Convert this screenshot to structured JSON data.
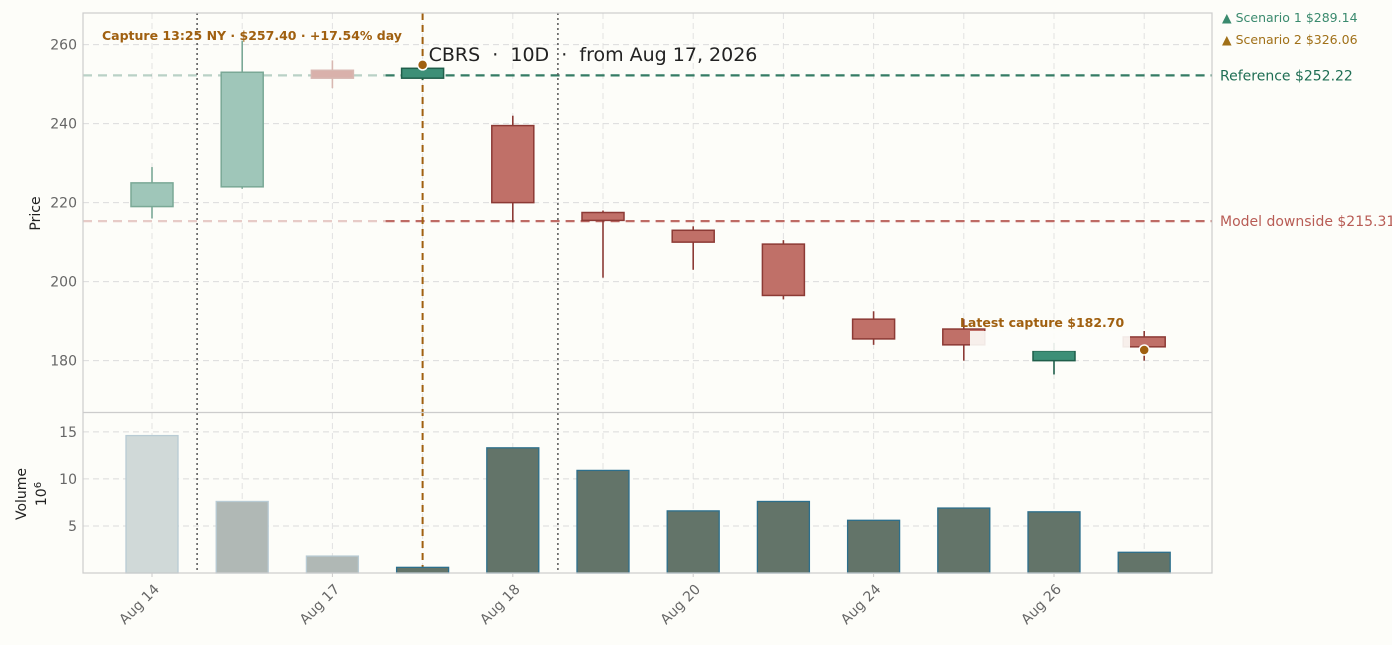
{
  "chart_data": {
    "type": "candlestick",
    "title": "CBRS  ·  10D  ·  from Aug 17, 2026",
    "ticker": "CBRS",
    "ylabel": "Price",
    "volume_label": "Volume",
    "volume_unit": "10^6",
    "ylim": [
      167,
      268
    ],
    "yticks": [
      180,
      200,
      220,
      240,
      260
    ],
    "volume_ylim": [
      0,
      17
    ],
    "volume_yticks": [
      5,
      10,
      15
    ],
    "grid": true,
    "x_tick_labels": [
      "Aug 14",
      "Aug 17",
      "Aug 18",
      "Aug 20",
      "Aug 24",
      "Aug 26"
    ],
    "x_tick_indices": [
      0,
      2,
      4,
      6,
      8,
      10
    ],
    "candles": [
      {
        "open": 219,
        "high": 229,
        "low": 216,
        "close": 225,
        "volume": 14.6,
        "faded": true
      },
      {
        "open": 224,
        "high": 261,
        "low": 223.5,
        "close": 253,
        "volume": 7.6,
        "faded": true
      },
      {
        "open": 253.5,
        "high": 256,
        "low": 249,
        "close": 251.5,
        "volume": 1.8,
        "faded": true
      },
      {
        "open": 251.5,
        "high": 255,
        "low": 251,
        "close": 254,
        "volume": 0.6,
        "faded": false
      },
      {
        "open": 239.5,
        "high": 242,
        "low": 215,
        "close": 220,
        "volume": 13.3,
        "faded": false
      },
      {
        "open": 217.5,
        "high": 218,
        "low": 201,
        "close": 215.5,
        "volume": 10.9,
        "faded": false
      },
      {
        "open": 213,
        "high": 214,
        "low": 203,
        "close": 210,
        "volume": 6.6,
        "faded": false
      },
      {
        "open": 209.5,
        "high": 210.5,
        "low": 195.5,
        "close": 196.5,
        "volume": 7.6,
        "faded": false
      },
      {
        "open": 190.5,
        "high": 192.5,
        "low": 184,
        "close": 185.5,
        "volume": 5.6,
        "faded": false
      },
      {
        "open": 188,
        "high": 190.5,
        "low": 180,
        "close": 184,
        "volume": 6.9,
        "faded": false
      },
      {
        "open": 180,
        "high": 184.5,
        "low": 176.5,
        "close": 182.5,
        "volume": 6.5,
        "faded": false
      },
      {
        "open": 186,
        "high": 187.5,
        "low": 180,
        "close": 183.5,
        "volume": 2.2,
        "faded": false
      }
    ],
    "reference_lines": [
      {
        "label": "Reference $252.22",
        "value": 252.22,
        "color": "#1f6e54"
      },
      {
        "label": "Model downside $215.31",
        "value": 215.31,
        "color": "#b85c55"
      }
    ],
    "scenarios": [
      {
        "label": "▲ Scenario 1 $289.14",
        "value": 289.14,
        "color": "#3a8a6e"
      },
      {
        "label": "▲ Scenario 2 $326.06",
        "value": 326.06,
        "color": "#a07018"
      }
    ],
    "annotations": {
      "capture": {
        "label": "Capture 13:25 NY · $257.40 · +17.54% day",
        "candle_index": 3,
        "price": 257.4
      },
      "latest": {
        "label": "Latest capture $182.70",
        "candle_index": 11,
        "price": 182.7
      }
    },
    "session_markers": {
      "dotted_after_index": [
        0,
        4
      ],
      "dashed_index": 3
    },
    "colors": {
      "up": "#3d8f77",
      "up_edge": "#1f5e4a",
      "down": "#c07068",
      "down_edge": "#8c3a35",
      "up_faded": "#9fc6b9",
      "down_faded": "#e6d0cb",
      "down_faded_mid": "#d9b1ab",
      "volume": "#637469",
      "volume_edge": "#2c6f8c",
      "volume_faded": "#d0d9d8",
      "volume_faded2": "#b0b8b5",
      "capture": "#a06010",
      "background": "#fdfdf9"
    }
  }
}
